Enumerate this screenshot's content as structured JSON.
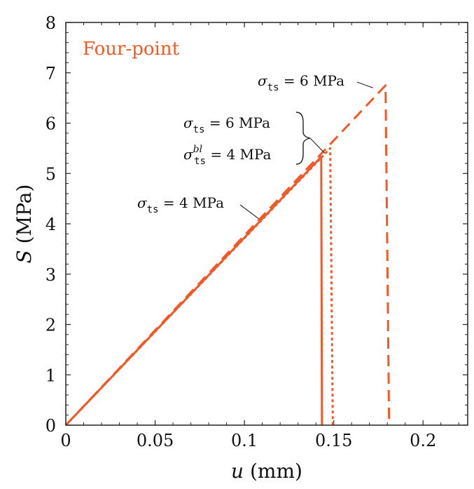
{
  "chart_data": {
    "type": "line",
    "title": "",
    "xlabel": "u (mm)",
    "ylabel": "S (MPa)",
    "xlim": [
      0,
      0.225
    ],
    "ylim": [
      0,
      8
    ],
    "x_ticks": [
      0,
      0.05,
      0.1,
      0.15,
      0.2
    ],
    "x_tick_labels": [
      "0",
      "0.05",
      "0.1",
      "0.15",
      "0.2"
    ],
    "y_ticks": [
      0,
      1,
      2,
      3,
      4,
      5,
      6,
      7,
      8
    ],
    "y_tick_labels": [
      "0",
      "1",
      "2",
      "3",
      "4",
      "5",
      "6",
      "7",
      "8"
    ],
    "corner_label": "Four-point",
    "accent_color": "#f05a28",
    "series": [
      {
        "name": "σts = 4 MPa",
        "style": "solid",
        "points": [
          [
            0,
            0
          ],
          [
            0.143,
            5.33
          ],
          [
            0.1434,
            0
          ]
        ]
      },
      {
        "name": "σts = 6 MPa, σts_bl = 4 MPa",
        "style": "dotted",
        "points": [
          [
            0,
            0
          ],
          [
            0.148,
            5.5
          ],
          [
            0.1495,
            0
          ]
        ]
      },
      {
        "name": "σts = 6 MPa",
        "style": "dashed",
        "points": [
          [
            0,
            0
          ],
          [
            0.179,
            6.75
          ],
          [
            0.181,
            0
          ]
        ]
      }
    ],
    "annotations": [
      {
        "prefix": "σ",
        "sub": "ts",
        "suffix": " = 6 MPa",
        "target": [
          0.172,
          6.7
        ]
      },
      {
        "prefix": "σ",
        "sub": "ts",
        "suffix": " = 6 MPa",
        "sup": "",
        "target": [
          0.145,
          5.4
        ]
      },
      {
        "prefix": "σ",
        "sub": "ts",
        "sup": "bl",
        "suffix": " = 4 MPa",
        "target": [
          0.145,
          5.4
        ]
      },
      {
        "prefix": "σ",
        "sub": "ts",
        "suffix": " = 4 MPa",
        "target": [
          0.108,
          4.1
        ]
      }
    ]
  }
}
